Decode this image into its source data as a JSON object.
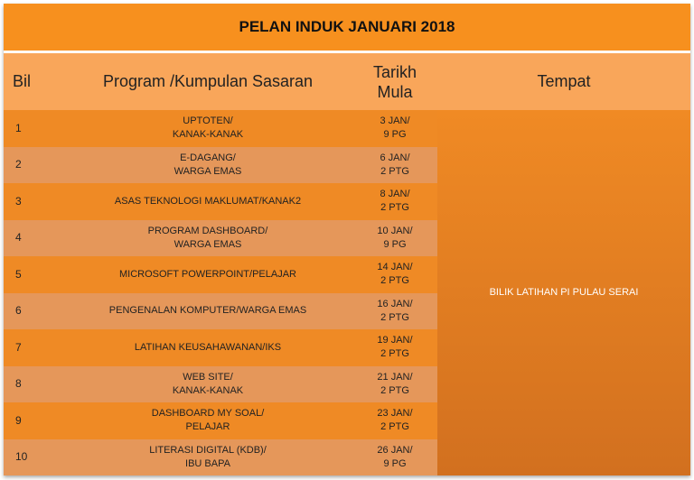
{
  "title": "PELAN INDUK JANUARI 2018",
  "headers": {
    "bil": "Bil",
    "program": "Program /Kumpulan Sasaran",
    "tarikh": "Tarikh\nMula",
    "tempat": "Tempat"
  },
  "tempat": "BILIK LATIHAN PI PULAU SERAI",
  "rows": [
    {
      "bil": "1",
      "program": "UPTOTEN/\nKANAK-KANAK",
      "tarikh": "3 JAN/\n9 PG"
    },
    {
      "bil": "2",
      "program": "E-DAGANG/\nWARGA EMAS",
      "tarikh": "6 JAN/\n2 PTG"
    },
    {
      "bil": "3",
      "program": "ASAS TEKNOLOGI MAKLUMAT/KANAK2",
      "tarikh": "8 JAN/\n2 PTG"
    },
    {
      "bil": "4",
      "program": "PROGRAM DASHBOARD/\nWARGA EMAS",
      "tarikh": "10 JAN/\n9 PG"
    },
    {
      "bil": "5",
      "program": "MICROSOFT POWERPOINT/PELAJAR",
      "tarikh": "14 JAN/\n2 PTG"
    },
    {
      "bil": "6",
      "program": "PENGENALAN KOMPUTER/WARGA EMAS",
      "tarikh": "16 JAN/\n2 PTG"
    },
    {
      "bil": "7",
      "program": "LATIHAN KEUSAHAWANAN/IKS",
      "tarikh": "19 JAN/\n2 PTG"
    },
    {
      "bil": "8",
      "program": "WEB SITE/\nKANAK-KANAK",
      "tarikh": "21 JAN/\n2 PTG"
    },
    {
      "bil": "9",
      "program": "DASHBOARD MY SOAL/\nPELAJAR",
      "tarikh": "23 JAN/\n2 PTG"
    },
    {
      "bil": "10",
      "program": "LITERASI DIGITAL (KDB)/\nIBU BAPA",
      "tarikh": "26 JAN/\n9 PG"
    }
  ]
}
